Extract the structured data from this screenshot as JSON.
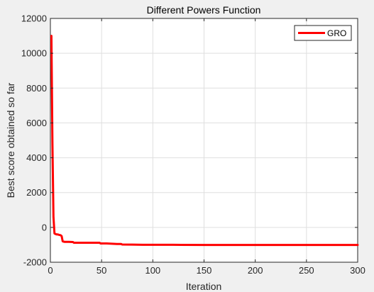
{
  "chart_data": {
    "type": "line",
    "title": "Different Powers Function",
    "xlabel": "Iteration",
    "ylabel": "Best score obtained so far",
    "xlim": [
      0,
      300
    ],
    "ylim": [
      -2000,
      12000
    ],
    "xticks": [
      0,
      50,
      100,
      150,
      200,
      250,
      300
    ],
    "yticks": [
      -2000,
      0,
      2000,
      4000,
      6000,
      8000,
      10000,
      12000
    ],
    "xtick_labels": [
      "0",
      "50",
      "100",
      "150",
      "200",
      "250",
      "300"
    ],
    "ytick_labels": [
      "-2000",
      "0",
      "2000",
      "4000",
      "6000",
      "8000",
      "10000",
      "12000"
    ],
    "grid": true,
    "legend_position": "top-right",
    "series": [
      {
        "name": "GRO",
        "color": "#ff0000",
        "x": [
          1,
          2,
          3,
          4,
          5,
          6,
          7,
          8,
          10,
          11,
          12,
          13,
          14,
          15,
          18,
          22,
          23,
          25,
          30,
          40,
          48,
          49,
          55,
          65,
          69,
          70,
          80,
          90,
          100,
          120,
          150,
          200,
          250,
          300
        ],
        "y": [
          11000,
          4800,
          600,
          -350,
          -380,
          -400,
          -400,
          -420,
          -450,
          -500,
          -800,
          -820,
          -830,
          -830,
          -830,
          -840,
          -880,
          -880,
          -880,
          -880,
          -880,
          -920,
          -920,
          -950,
          -950,
          -980,
          -990,
          -1000,
          -1000,
          -1000,
          -1010,
          -1010,
          -1010,
          -1010
        ]
      }
    ]
  }
}
